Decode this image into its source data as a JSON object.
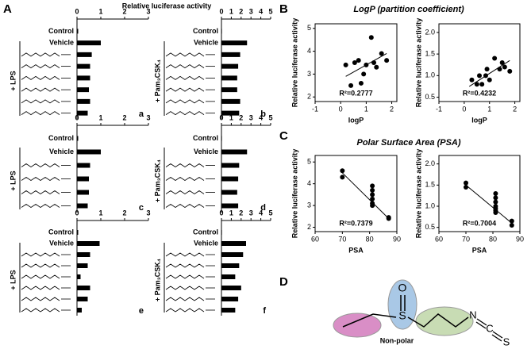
{
  "panel_labels": [
    "A",
    "B",
    "C",
    "D"
  ],
  "panel_a_axis_title": "Relative luciferase activity",
  "panel_b_title": "LogP (partition coefficient)",
  "panel_c_title": "Polar Surface Area (PSA)",
  "diagram": {
    "atoms": [
      "O",
      "S",
      "N",
      "C",
      "S"
    ],
    "caption": "Non-polar"
  },
  "chart_data": [
    {
      "type": "bar",
      "label": "a",
      "group": "+ LPS",
      "color": "#000000",
      "categories": [
        "Control",
        "Vehicle",
        null,
        null,
        null,
        null,
        null,
        null
      ],
      "values": [
        0.05,
        1.0,
        0.62,
        0.55,
        0.55,
        0.5,
        0.55,
        0.45
      ],
      "xlim": [
        0,
        3
      ],
      "xticks": [
        0,
        1,
        2,
        3
      ]
    },
    {
      "type": "bar",
      "label": "b",
      "group": "+ Pam₃CSK₄",
      "color": "#000000",
      "categories": [
        "Control",
        "Vehicle",
        null,
        null,
        null,
        null,
        null,
        null
      ],
      "values": [
        0.05,
        2.6,
        1.9,
        1.7,
        1.6,
        1.6,
        1.9,
        1.8
      ],
      "xlim": [
        0,
        5
      ],
      "xticks": [
        0,
        1,
        2,
        3,
        4,
        5
      ]
    },
    {
      "type": "bar",
      "label": "c",
      "group": "+ LPS",
      "color": "#000000",
      "categories": [
        "Control",
        "Vehicle",
        null,
        null,
        null,
        null
      ],
      "values": [
        0.05,
        1.0,
        0.55,
        0.5,
        0.5,
        0.45
      ],
      "xlim": [
        0,
        3
      ],
      "xticks": [
        0,
        1,
        2,
        3
      ]
    },
    {
      "type": "bar",
      "label": "d",
      "group": "+ Pam₃CSK₄",
      "color": "#000000",
      "categories": [
        "Control",
        "Vehicle",
        null,
        null,
        null,
        null
      ],
      "values": [
        0.05,
        2.6,
        1.8,
        1.7,
        1.6,
        1.7
      ],
      "xlim": [
        0,
        5
      ],
      "xticks": [
        0,
        1,
        2,
        3,
        4,
        5
      ]
    },
    {
      "type": "bar",
      "label": "e",
      "group": "+ LPS",
      "color": "#000000",
      "categories": [
        "Control",
        "Vehicle",
        null,
        null,
        null,
        null,
        null,
        null
      ],
      "values": [
        0.05,
        0.95,
        0.55,
        0.45,
        0.15,
        0.55,
        0.45,
        0.2
      ],
      "xlim": [
        0,
        3
      ],
      "xticks": [
        0,
        1,
        2,
        3
      ]
    },
    {
      "type": "bar",
      "label": "f",
      "group": "+ Pam₃CSK₄",
      "color": "#000000",
      "categories": [
        "Control",
        "Vehicle",
        null,
        null,
        null,
        null,
        null,
        null
      ],
      "values": [
        0.05,
        2.5,
        2.2,
        1.8,
        1.4,
        2.0,
        1.7,
        1.4
      ],
      "xlim": [
        0,
        5
      ],
      "xticks": [
        0,
        1,
        2,
        3,
        4,
        5
      ]
    },
    {
      "type": "scatter",
      "color": "#000000",
      "xlabel": "logP",
      "ylabel": "Relative luciferase activity",
      "annotation": "R²=0.2777",
      "x": [
        0.2,
        0.4,
        0.55,
        0.7,
        0.8,
        0.9,
        1.0,
        1.2,
        1.3,
        1.4,
        1.6,
        1.8
      ],
      "y": [
        3.4,
        2.5,
        3.5,
        3.6,
        2.6,
        3.0,
        3.4,
        4.6,
        3.5,
        3.3,
        3.9,
        3.6
      ],
      "fit": {
        "x": [
          0.2,
          1.8
        ],
        "y": [
          2.9,
          3.9
        ]
      },
      "xlim": [
        -1,
        2.2
      ],
      "xticks": [
        -1,
        0,
        1,
        2
      ],
      "ylim": [
        1.8,
        5.2
      ],
      "yticks": [
        2,
        3,
        4,
        5
      ]
    },
    {
      "type": "scatter",
      "color": "#000000",
      "xlabel": "logP",
      "ylabel": "Relative luciferase activity",
      "annotation": "R²=0.4232",
      "x": [
        0.3,
        0.5,
        0.6,
        0.7,
        0.85,
        0.9,
        1.0,
        1.2,
        1.4,
        1.5,
        1.6,
        1.8
      ],
      "y": [
        0.9,
        0.8,
        1.0,
        0.8,
        1.0,
        1.15,
        0.9,
        1.4,
        1.15,
        1.3,
        1.2,
        1.1
      ],
      "fit": {
        "x": [
          0.2,
          1.8
        ],
        "y": [
          0.75,
          1.35
        ]
      },
      "xlim": [
        -1,
        2.2
      ],
      "xticks": [
        -1,
        0,
        1,
        2
      ],
      "ylim": [
        0.4,
        2.2
      ],
      "yticks": [
        0.5,
        {
          "value": 1,
          "label": "1.0"
        },
        1.5,
        {
          "value": 2,
          "label": "2.0"
        }
      ]
    },
    {
      "type": "scatter",
      "color": "#000000",
      "xlabel": "PSA",
      "ylabel": "Relative luciferase activity",
      "annotation": "R²=0.7379",
      "x": [
        70,
        70,
        81,
        81,
        81,
        81,
        81,
        81,
        87,
        87
      ],
      "y": [
        4.6,
        4.3,
        3.9,
        3.7,
        3.5,
        3.3,
        3.1,
        3.0,
        2.45,
        2.4
      ],
      "fit": {
        "x": [
          70,
          87
        ],
        "y": [
          4.5,
          2.4
        ]
      },
      "xlim": [
        60,
        90
      ],
      "xticks": [
        60,
        70,
        80,
        90
      ],
      "ylim": [
        1.8,
        5.3
      ],
      "yticks": [
        2,
        3,
        4,
        5
      ]
    },
    {
      "type": "scatter",
      "color": "#000000",
      "xlabel": "PSA",
      "ylabel": "Relative luciferase activity",
      "annotation": "R²=0.7004",
      "x": [
        70,
        70,
        81,
        81,
        81,
        81,
        81,
        81,
        81,
        87,
        87
      ],
      "y": [
        1.55,
        1.45,
        1.3,
        1.2,
        1.1,
        1.0,
        0.95,
        0.9,
        0.85,
        0.65,
        0.55
      ],
      "fit": {
        "x": [
          70,
          87
        ],
        "y": [
          1.5,
          0.6
        ]
      },
      "xlim": [
        60,
        90
      ],
      "xticks": [
        60,
        70,
        80,
        90
      ],
      "ylim": [
        0.4,
        2.2
      ],
      "yticks": [
        0.5,
        {
          "value": 1,
          "label": "1.0"
        },
        1.5,
        {
          "value": 2,
          "label": "2.0"
        }
      ]
    }
  ]
}
